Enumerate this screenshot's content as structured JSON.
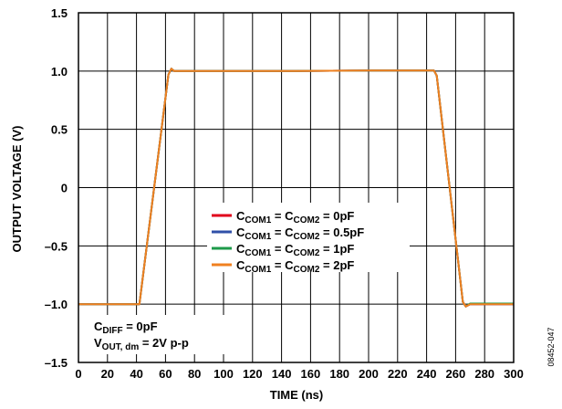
{
  "chart_data": {
    "type": "line",
    "title": "",
    "xlabel": "TIME (ns)",
    "ylabel": "OUTPUT VOLTAGE (V)",
    "xlim": [
      0,
      300
    ],
    "ylim": [
      -1.5,
      1.5
    ],
    "x_ticks": [
      0,
      20,
      40,
      60,
      80,
      100,
      120,
      140,
      160,
      180,
      200,
      220,
      240,
      260,
      280,
      300
    ],
    "y_ticks": [
      -1.5,
      -1.0,
      -0.5,
      0,
      0.5,
      1.0,
      1.5
    ],
    "y_tick_labels": [
      "–1.5",
      "–1.0",
      "–0.5",
      "0",
      "0.5",
      "1.0",
      "1.5"
    ],
    "grid": true,
    "legend_position": "center",
    "series": [
      {
        "name": {
          "p1": "C",
          "s1": "COM1",
          "p2": " = C",
          "s2": "COM2",
          "p3": " = 0pF"
        },
        "color": "#e0001b",
        "x": [
          0,
          42,
          62,
          64,
          66,
          70,
          80,
          100,
          150,
          200,
          245,
          247,
          265,
          267,
          270,
          300
        ],
        "y": [
          -1.0,
          -1.0,
          0.97,
          1.02,
          1.0,
          1.0,
          1.0,
          1.0,
          1.0,
          1.005,
          1.005,
          0.96,
          -0.98,
          -1.02,
          -1.0,
          -1.0
        ]
      },
      {
        "name": {
          "p1": "C",
          "s1": "COM1",
          "p2": " = C",
          "s2": "COM2",
          "p3": " = 0.5pF"
        },
        "color": "#3050a8",
        "x": [
          0,
          42,
          62,
          64,
          66,
          70,
          80,
          100,
          150,
          200,
          245,
          247,
          265,
          267,
          270,
          300
        ],
        "y": [
          -1.0,
          -1.0,
          0.97,
          1.02,
          1.0,
          1.0,
          1.0,
          1.0,
          1.0,
          1.005,
          1.005,
          0.96,
          -0.98,
          -1.02,
          -1.0,
          -1.0
        ]
      },
      {
        "name": {
          "p1": "C",
          "s1": "COM1",
          "p2": " = C",
          "s2": "COM2",
          "p3": " = 1pF"
        },
        "color": "#1e9a4a",
        "x": [
          0,
          42,
          62,
          64,
          66,
          70,
          80,
          100,
          150,
          200,
          245,
          247,
          265,
          267,
          270,
          300
        ],
        "y": [
          -1.0,
          -1.0,
          0.97,
          1.02,
          1.0,
          1.0,
          1.0,
          1.0,
          1.0,
          1.005,
          1.005,
          0.96,
          -0.98,
          -1.02,
          -0.995,
          -0.995
        ]
      },
      {
        "name": {
          "p1": "C",
          "s1": "COM1",
          "p2": " = C",
          "s2": "COM2",
          "p3": " = 2pF"
        },
        "color": "#f08020",
        "x": [
          0,
          42,
          62,
          64,
          66,
          70,
          80,
          100,
          150,
          200,
          245,
          247,
          265,
          267,
          270,
          300
        ],
        "y": [
          -1.0,
          -1.0,
          0.97,
          1.02,
          1.0,
          1.0,
          1.0,
          1.0,
          1.0,
          1.005,
          1.005,
          0.96,
          -0.98,
          -1.02,
          -1.0,
          -1.0
        ]
      }
    ],
    "annotations": {
      "cdiff": {
        "p1": "C",
        "s1": "DIFF",
        "p2": " = 0pF"
      },
      "vout": {
        "p1": "V",
        "s1": "OUT, dm",
        "p2": " = 2V p-p"
      }
    },
    "figure_id": "08452-047"
  }
}
